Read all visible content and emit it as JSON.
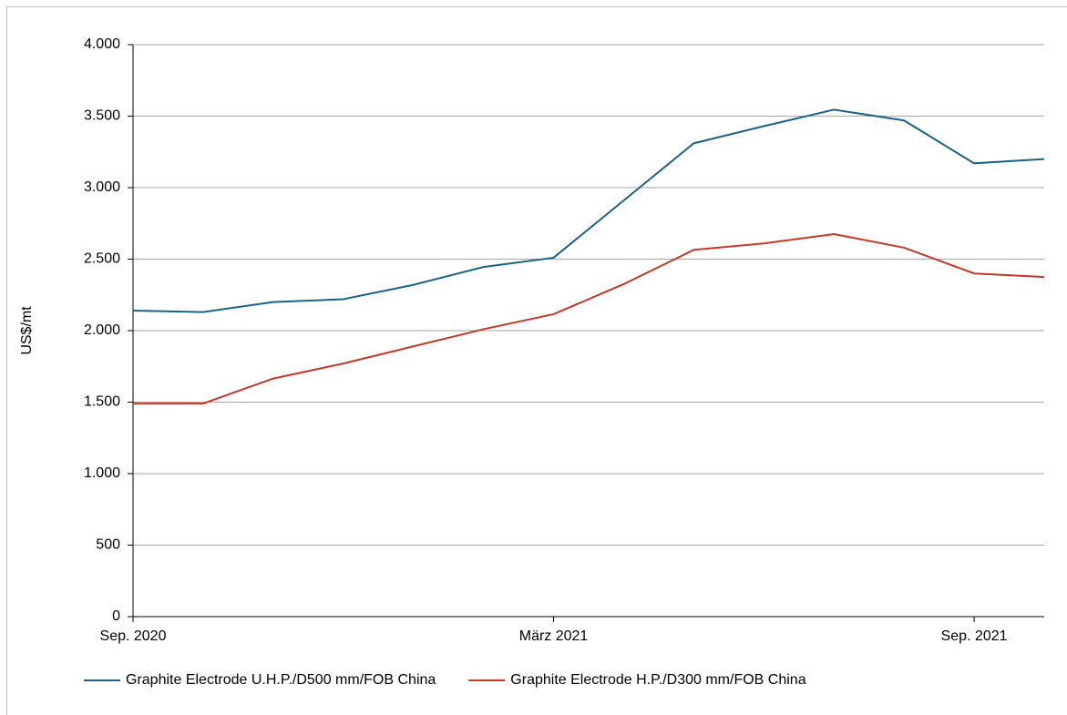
{
  "chart_data": {
    "type": "line",
    "y_label": "US$/mt",
    "categories": [
      "Sep. 2020",
      null,
      null,
      null,
      null,
      null,
      "März 2021",
      null,
      null,
      null,
      null,
      null,
      "Sep. 2021",
      null
    ],
    "series": [
      {
        "name": "Graphite Electrode U.H.P./D500 mm/FOB China",
        "color": "#1a6382",
        "values": [
          2140,
          2130,
          2200,
          2220,
          2320,
          2445,
          2510,
          2910,
          3310,
          3430,
          3545,
          3470,
          3170,
          3200
        ]
      },
      {
        "name": "Graphite Electrode H.P./D300 mm/FOB China",
        "color": "#c0392b",
        "values": [
          1490,
          1490,
          1665,
          1770,
          1890,
          2010,
          2115,
          2325,
          2565,
          2610,
          2675,
          2580,
          2400,
          2375
        ]
      }
    ],
    "ylim": [
      0,
      4000
    ],
    "yticks": [
      0,
      500,
      {
        "value": 1000,
        "label": "1.000"
      },
      {
        "value": 1500,
        "label": "1.500"
      },
      {
        "value": 2000,
        "label": "2.000"
      },
      {
        "value": 2500,
        "label": "2.500"
      },
      {
        "value": 3000,
        "label": "3.000"
      },
      {
        "value": 3500,
        "label": "3.500"
      },
      {
        "value": 4000,
        "label": "4.000"
      }
    ],
    "grid": true,
    "legend": "bottom"
  }
}
